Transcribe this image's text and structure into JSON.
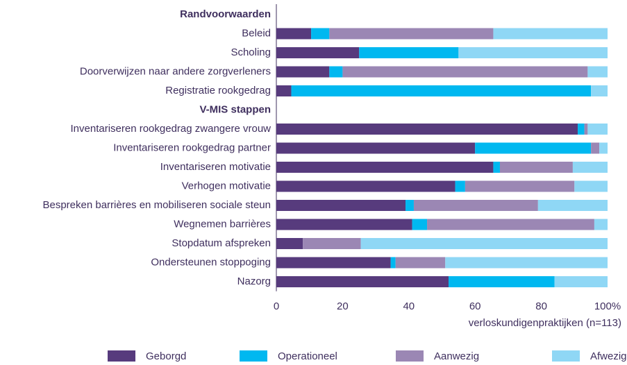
{
  "chart_data": {
    "type": "stacked-barh",
    "x_label": "verloskundigenpraktijken (n=113)",
    "categories": [
      "Randvoorwaarden",
      "Beleid",
      "Scholing",
      "Doorverwijzen naar andere zorgverleners",
      "Registratie rookgedrag",
      "V-MIS stappen",
      "Inventariseren rookgedrag zwangere vrouw",
      "Inventariseren rookgedrag partner",
      "Inventariseren motivatie",
      "Verhogen motivatie",
      "Bespreken barrières en mobiliseren sociale steun",
      "Wegnemen barrières",
      "Stopdatum afspreken",
      "Ondersteunen stoppoging",
      "Nazorg"
    ],
    "series": [
      {
        "name": "Geborgd",
        "color": "#573b7d",
        "values": [
          null,
          10.5,
          25,
          16,
          4.5,
          null,
          91,
          60,
          65.5,
          54,
          39,
          41,
          8,
          34.5,
          52
        ]
      },
      {
        "name": "Operationeel",
        "color": "#00b8f0",
        "values": [
          null,
          5.5,
          30,
          4,
          90.5,
          null,
          2,
          35,
          2,
          3,
          2.5,
          4.5,
          0,
          1.5,
          32
        ]
      },
      {
        "name": "Aanwezig",
        "color": "#9b87b4",
        "values": [
          null,
          49.5,
          0,
          74,
          0,
          null,
          1,
          2.5,
          22,
          33,
          37.5,
          50.5,
          17.5,
          15,
          0
        ]
      },
      {
        "name": "Afwezig",
        "color": "#8fd7f5",
        "values": [
          null,
          34.5,
          45,
          6,
          5,
          null,
          6,
          2.5,
          10.5,
          10,
          21,
          4,
          74.5,
          49,
          16
        ]
      }
    ],
    "xlim": [
      0,
      100
    ],
    "xticks": [
      0,
      20,
      40,
      60,
      80,
      {
        "value": 100,
        "label": "100%"
      }
    ],
    "legend": "bottom"
  }
}
